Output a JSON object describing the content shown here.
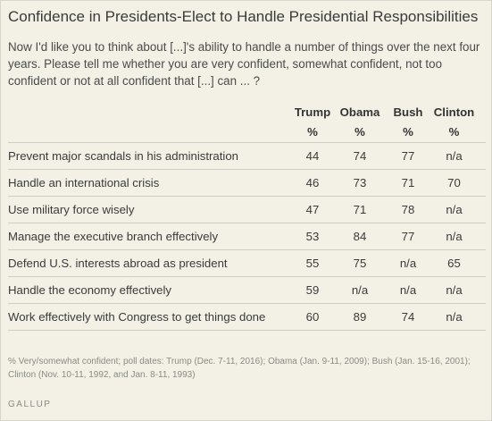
{
  "title": "Confidence in Presidents-Elect to Handle Presidential Responsibilities",
  "question": "Now I'd like you to think about [...]'s ability to handle a number of things over the next four years. Please tell me whether you are very confident, somewhat confident, not too confident or not at all confident that [...] can ... ?",
  "table": {
    "columns": [
      "Trump",
      "Obama",
      "Bush",
      "Clinton"
    ],
    "units": [
      "%",
      "%",
      "%",
      "%"
    ],
    "rows": [
      {
        "label": "Prevent major scandals in his administration",
        "values": [
          "44",
          "74",
          "77",
          "n/a"
        ]
      },
      {
        "label": "Handle an international crisis",
        "values": [
          "46",
          "73",
          "71",
          "70"
        ]
      },
      {
        "label": "Use military force wisely",
        "values": [
          "47",
          "71",
          "78",
          "n/a"
        ]
      },
      {
        "label": "Manage the executive branch effectively",
        "values": [
          "53",
          "84",
          "77",
          "n/a"
        ]
      },
      {
        "label": "Defend U.S. interests abroad as president",
        "values": [
          "55",
          "75",
          "n/a",
          "65"
        ]
      },
      {
        "label": "Handle the economy effectively",
        "values": [
          "59",
          "n/a",
          "n/a",
          "n/a"
        ]
      },
      {
        "label": "Work effectively with Congress to get things done",
        "values": [
          "60",
          "89",
          "74",
          "n/a"
        ]
      }
    ]
  },
  "footnote": "% Very/somewhat confident; poll dates: Trump (Dec. 7-11, 2016); Obama (Jan. 9-11, 2009); Bush (Jan. 15-16, 2001); Clinton (Nov. 10-11, 1992, and Jan. 8-11, 1993)",
  "brand": "GALLUP"
}
